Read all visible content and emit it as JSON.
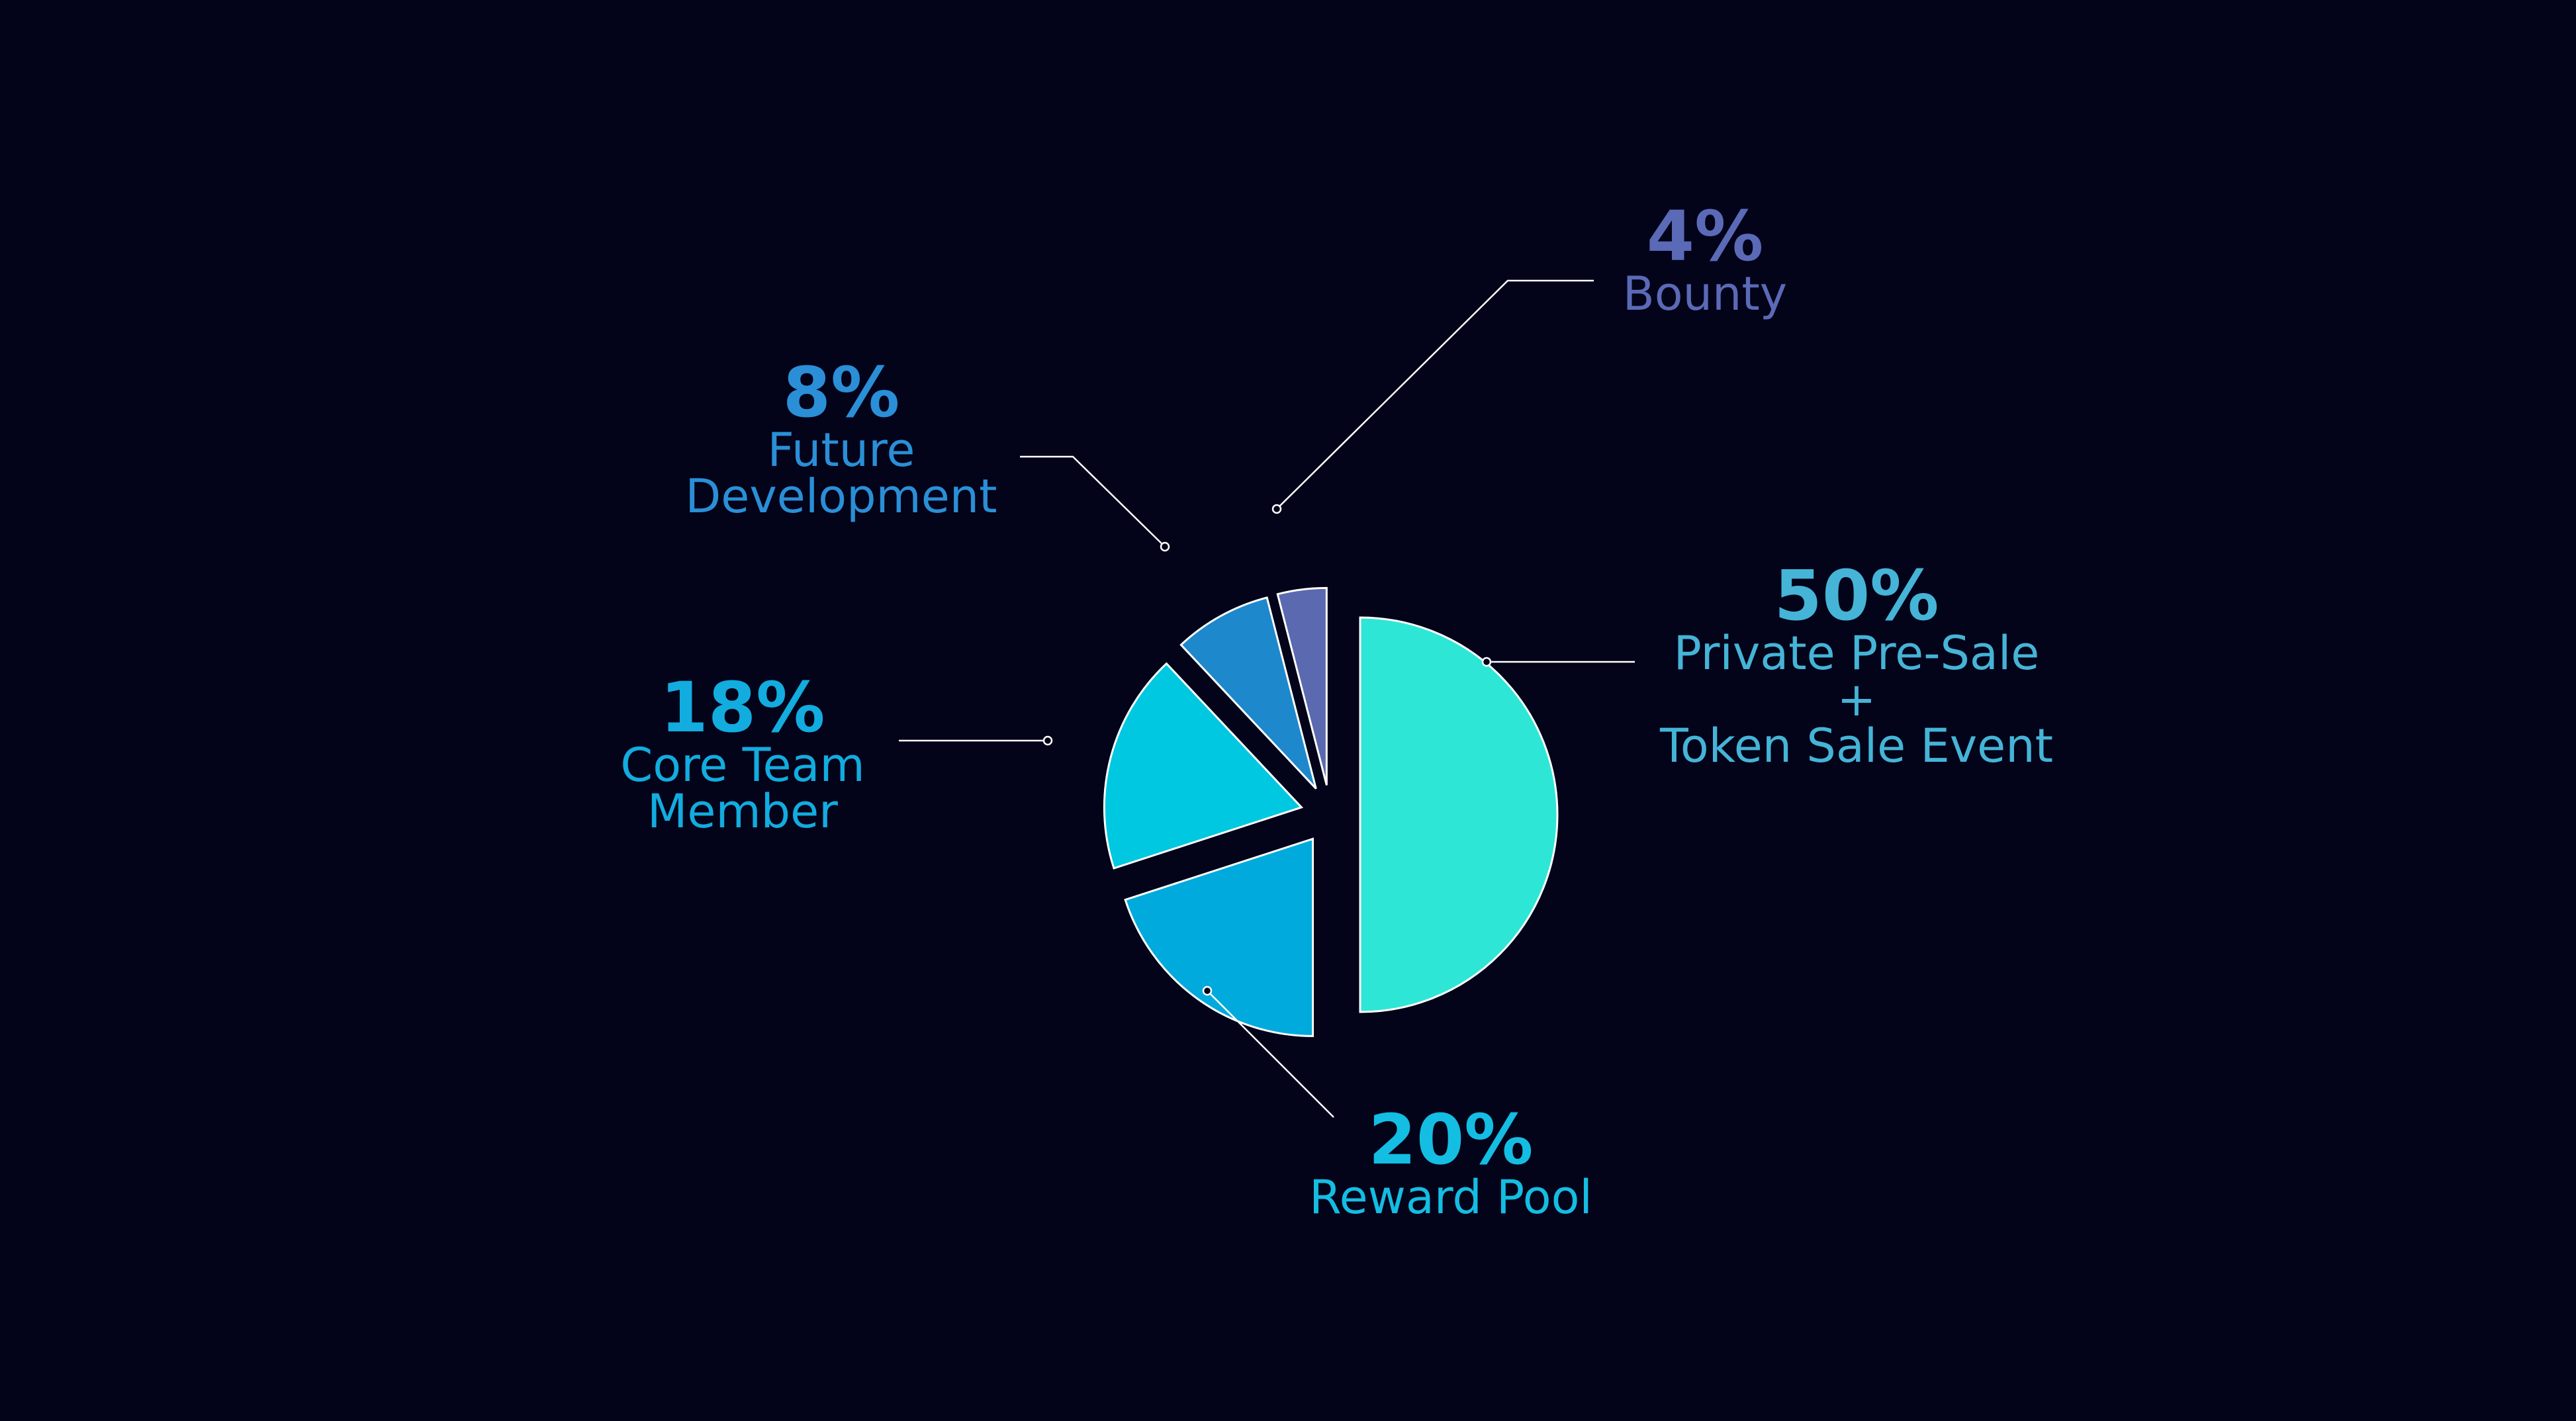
{
  "chart_data": {
    "type": "pie",
    "categories": [
      "Private Pre-Sale\n+\nToken Sale Event",
      "Reward Pool",
      "Core Team\nMember",
      "Future\nDevelopment",
      "Bounty"
    ],
    "values": [
      50,
      20,
      18,
      8,
      4
    ],
    "value_labels": [
      "50%",
      "20%",
      "18%",
      "8%",
      "4%"
    ],
    "colors": [
      "#2ee6d6",
      "#00aadd",
      "#00c8e0",
      "#1e88cc",
      "#5b6ab0"
    ],
    "label_colors": [
      "#45b4d6",
      "#14bde2",
      "#12acdf",
      "#2a8fd6",
      "#5b6ab6"
    ]
  }
}
